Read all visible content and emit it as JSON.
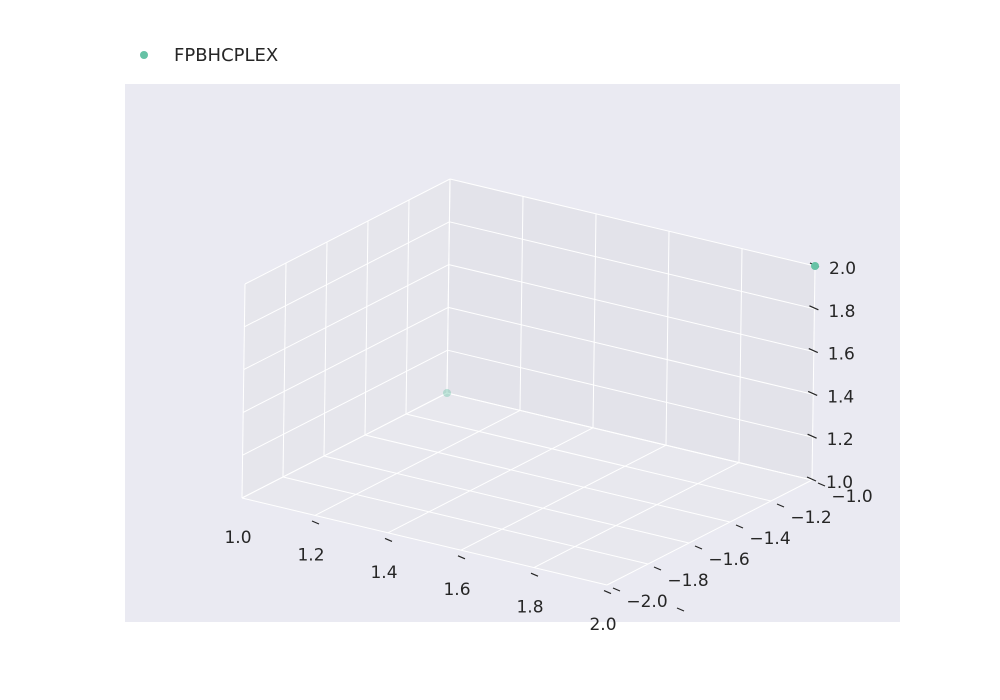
{
  "chart_data": {
    "type": "scatter",
    "projection": "3d",
    "title": "",
    "xlabel": "",
    "ylabel": "",
    "zlabel": "",
    "xlim": [
      1.0,
      2.0
    ],
    "ylim": [
      -2.0,
      -1.0
    ],
    "zlim": [
      1.0,
      2.0
    ],
    "x_ticks": [
      "1.0",
      "1.2",
      "1.4",
      "1.6",
      "1.8",
      "2.0"
    ],
    "y_ticks": [
      "−2.0",
      "−1.8",
      "−1.6",
      "−1.4",
      "−1.2",
      "−1.0"
    ],
    "z_ticks": [
      "1.0",
      "1.2",
      "1.4",
      "1.6",
      "1.8",
      "2.0"
    ],
    "grid": true,
    "legend_position": "top-left",
    "background_color": "#eaeaf2",
    "series": [
      {
        "name": "FPBHCPLEX",
        "color": "#66c2a5",
        "points": [
          {
            "x": 1.0,
            "y": -1.0,
            "z": 1.0
          },
          {
            "x": 2.0,
            "y": -1.0,
            "z": 2.0
          }
        ]
      }
    ]
  }
}
